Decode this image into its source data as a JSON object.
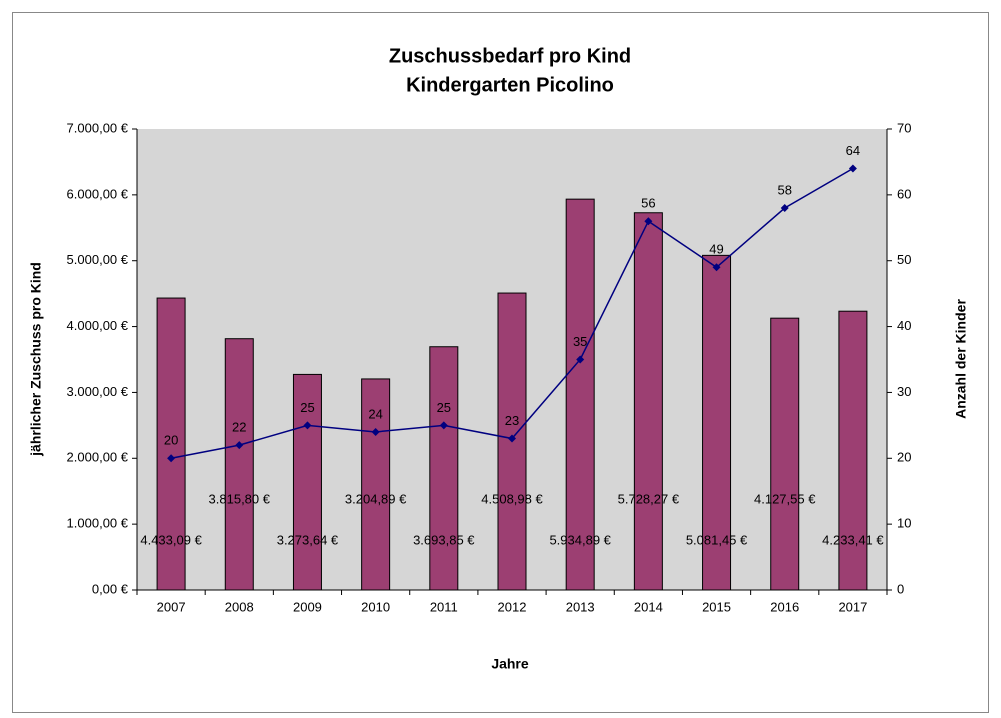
{
  "chart_data": {
    "type": "bar",
    "title": "Zuschussbedarf pro Kind",
    "subtitle": "Kindergarten Picolino",
    "x_label": "Jahre",
    "y_label": "jährlicher Zuschuss pro Kind",
    "y2_label": "Anzahl der Kinder",
    "categories": [
      "2007",
      "2008",
      "2009",
      "2010",
      "2011",
      "2012",
      "2013",
      "2014",
      "2015",
      "2016",
      "2017"
    ],
    "series": [
      {
        "name": "jährlicher Zuschuss pro Kind",
        "type": "bar",
        "axis": "y",
        "color": "#9c3f72",
        "values": [
          4433.09,
          3815.8,
          3273.64,
          3204.89,
          3693.85,
          4508.98,
          5934.89,
          5728.27,
          5081.45,
          4127.55,
          4233.41
        ],
        "value_labels": [
          "4.433,09 €",
          "3.815,80 €",
          "3.273,64 €",
          "3.204,89 €",
          "3.693,85 €",
          "4.508,98 €",
          "5.934,89 €",
          "5.728,27 €",
          "5.081,45 €",
          "4.127,55 €",
          "4.233,41 €"
        ]
      },
      {
        "name": "Anzahl der Kinder",
        "type": "line",
        "axis": "y2",
        "color": "#000080",
        "values": [
          20,
          22,
          25,
          24,
          25,
          23,
          35,
          56,
          49,
          58,
          64
        ]
      }
    ],
    "ylim": [
      0,
      7000
    ],
    "yticks": [
      {
        "value": 0,
        "label": "0,00 €"
      },
      {
        "value": 1000,
        "label": "1.000,00 €"
      },
      {
        "value": 2000,
        "label": "2.000,00 €"
      },
      {
        "value": 3000,
        "label": "3.000,00 €"
      },
      {
        "value": 4000,
        "label": "4.000,00 €"
      },
      {
        "value": 5000,
        "label": "5.000,00 €"
      },
      {
        "value": 6000,
        "label": "6.000,00 €"
      },
      {
        "value": 7000,
        "label": "7.000,00 €"
      }
    ],
    "y2lim": [
      0,
      70
    ],
    "y2ticks": [
      0,
      10,
      20,
      30,
      40,
      50,
      60,
      70
    ],
    "grid": false
  }
}
